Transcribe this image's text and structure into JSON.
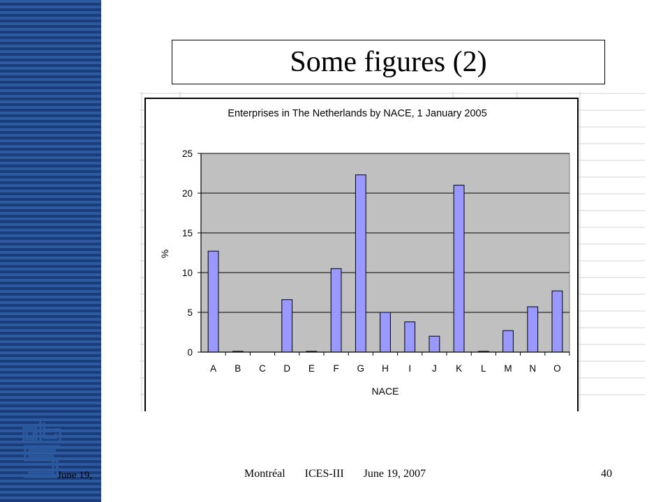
{
  "slide": {
    "title": "Some figures (2)",
    "footer_left": "June 19,",
    "footer_place": "Montréal",
    "footer_event": "ICES-III",
    "footer_date": "June 19, 2007",
    "page_number": "40"
  },
  "colors": {
    "sidebar_light": "#2c5aa0",
    "sidebar_dark": "#1c3d7a",
    "plot_bg": "#c0c0c0",
    "bar_fill": "#9999ff",
    "logo": "#2c5aa0"
  },
  "icons": {
    "logo": "cbs-logo"
  },
  "chart_data": {
    "type": "bar",
    "title": "Enterprises in The Netherlands by NACE, 1 January 2005",
    "xlabel": "NACE",
    "ylabel": "%",
    "categories": [
      "A",
      "B",
      "C",
      "D",
      "E",
      "F",
      "G",
      "H",
      "I",
      "J",
      "K",
      "L",
      "M",
      "N",
      "O"
    ],
    "values": [
      12.7,
      0.1,
      0,
      6.6,
      0.1,
      10.5,
      22.3,
      5.0,
      3.8,
      2.0,
      21.0,
      0.1,
      2.7,
      5.7,
      7.7
    ],
    "ylim": [
      0,
      25
    ],
    "yticks": [
      "0",
      "5",
      "10",
      "15",
      "20",
      "25"
    ],
    "grid": true,
    "legend": "none"
  }
}
